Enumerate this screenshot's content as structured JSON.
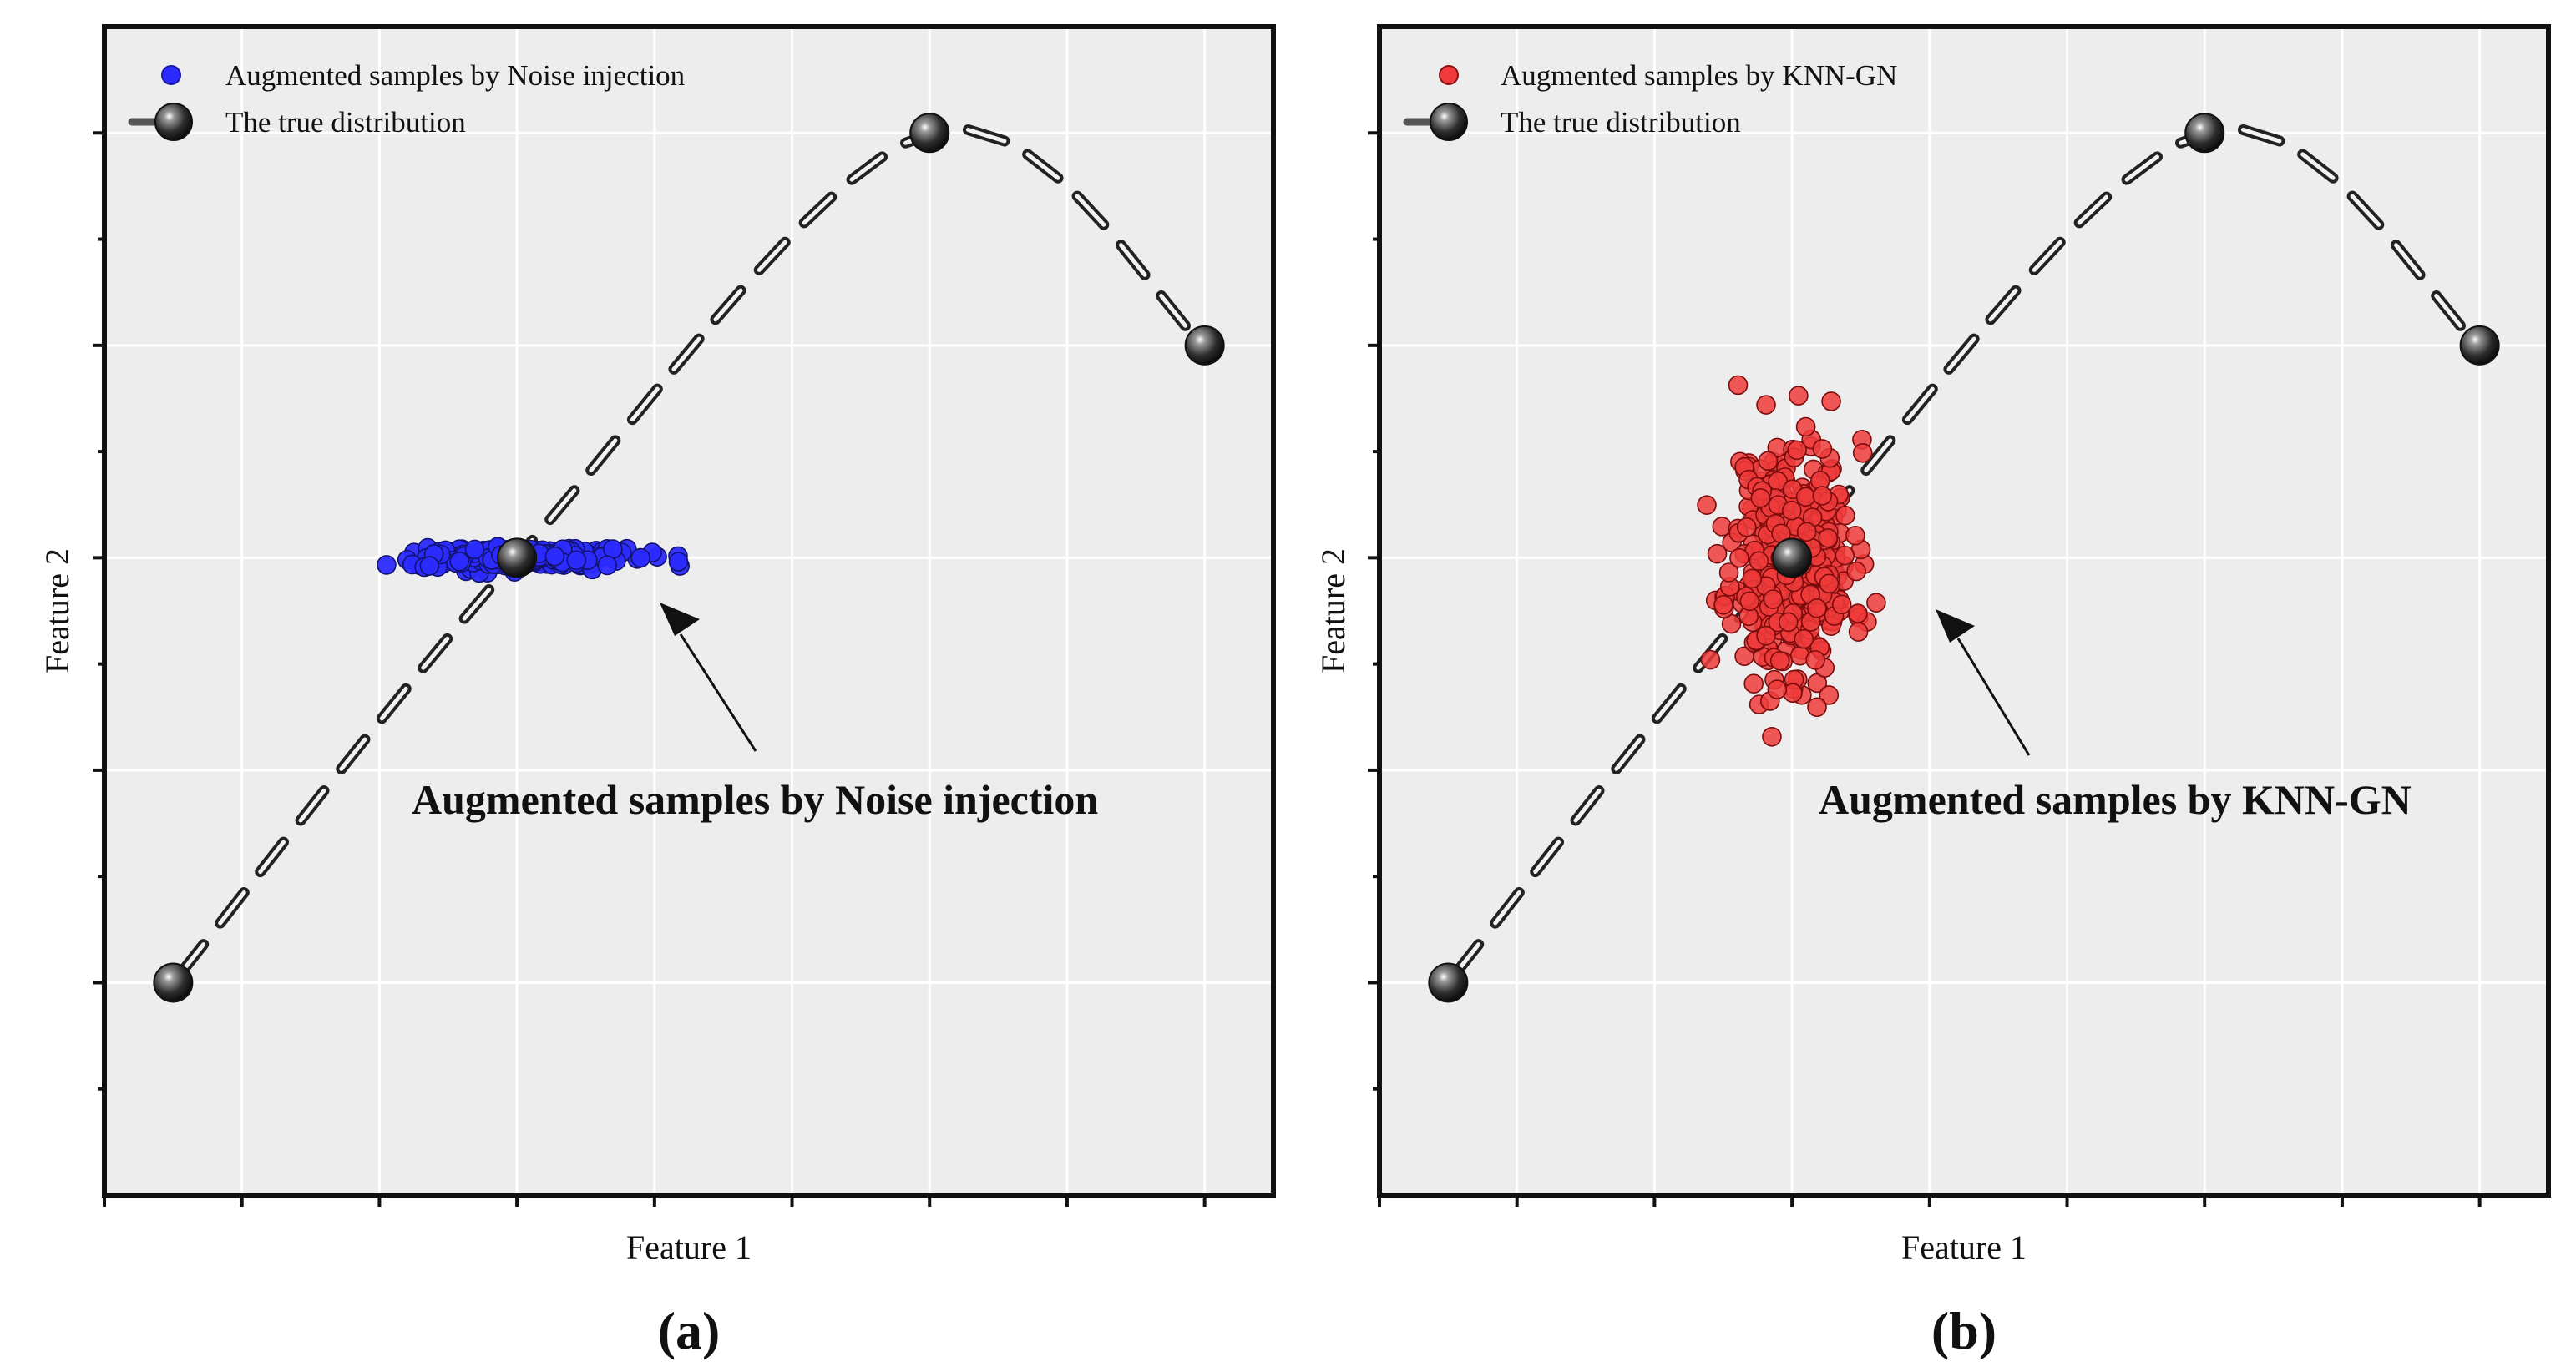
{
  "figure": {
    "caption_a": "(a)",
    "caption_b": "(b)"
  },
  "colors": {
    "panel_bg": "#ededed",
    "grid": "#ffffff",
    "blue": "#2b2bff",
    "red": "#ef3b3b",
    "curve_marker": "#2a2a2a"
  },
  "chart_data": [
    {
      "id": "a",
      "type": "scatter",
      "xlabel": "Feature 1",
      "ylabel": "Feature 2",
      "xlim": [
        0,
        8.5
      ],
      "ylim": [
        0,
        5.5
      ],
      "grid": true,
      "legend_position": "top-left",
      "legend": [
        "Augmented samples by Noise injection",
        "The true distribution"
      ],
      "annotation": {
        "text": "Augmented samples by Noise injection",
        "arrow_to": [
          4.05,
          2.83
        ]
      },
      "true_distribution": {
        "x": [
          0.5,
          3.0,
          6.0,
          8.0
        ],
        "y": [
          1.0,
          3.0,
          5.0,
          4.0
        ]
      },
      "augmented": {
        "series": "Augmented samples by Noise injection",
        "center": [
          3.0,
          3.0
        ],
        "spread_x": 0.38,
        "spread_y": 0.025,
        "count": 230,
        "seed": 7
      }
    },
    {
      "id": "b",
      "type": "scatter",
      "xlabel": "Feature 1",
      "ylabel": "Feature 2",
      "xlim": [
        0,
        8.5
      ],
      "ylim": [
        0,
        5.5
      ],
      "grid": true,
      "legend_position": "top-left",
      "legend": [
        "Augmented samples by KNN-GN",
        "The true distribution"
      ],
      "annotation": {
        "text": "Augmented samples by KNN-GN",
        "arrow_to": [
          4.05,
          2.83
        ]
      },
      "true_distribution": {
        "x": [
          0.5,
          3.0,
          6.0,
          8.0
        ],
        "y": [
          1.0,
          3.0,
          5.0,
          4.0
        ]
      },
      "augmented": {
        "series": "Augmented samples by KNN-GN",
        "center": [
          3.0,
          3.0
        ],
        "spread_x": 0.22,
        "spread_y": 0.28,
        "count": 420,
        "seed": 11
      }
    }
  ]
}
